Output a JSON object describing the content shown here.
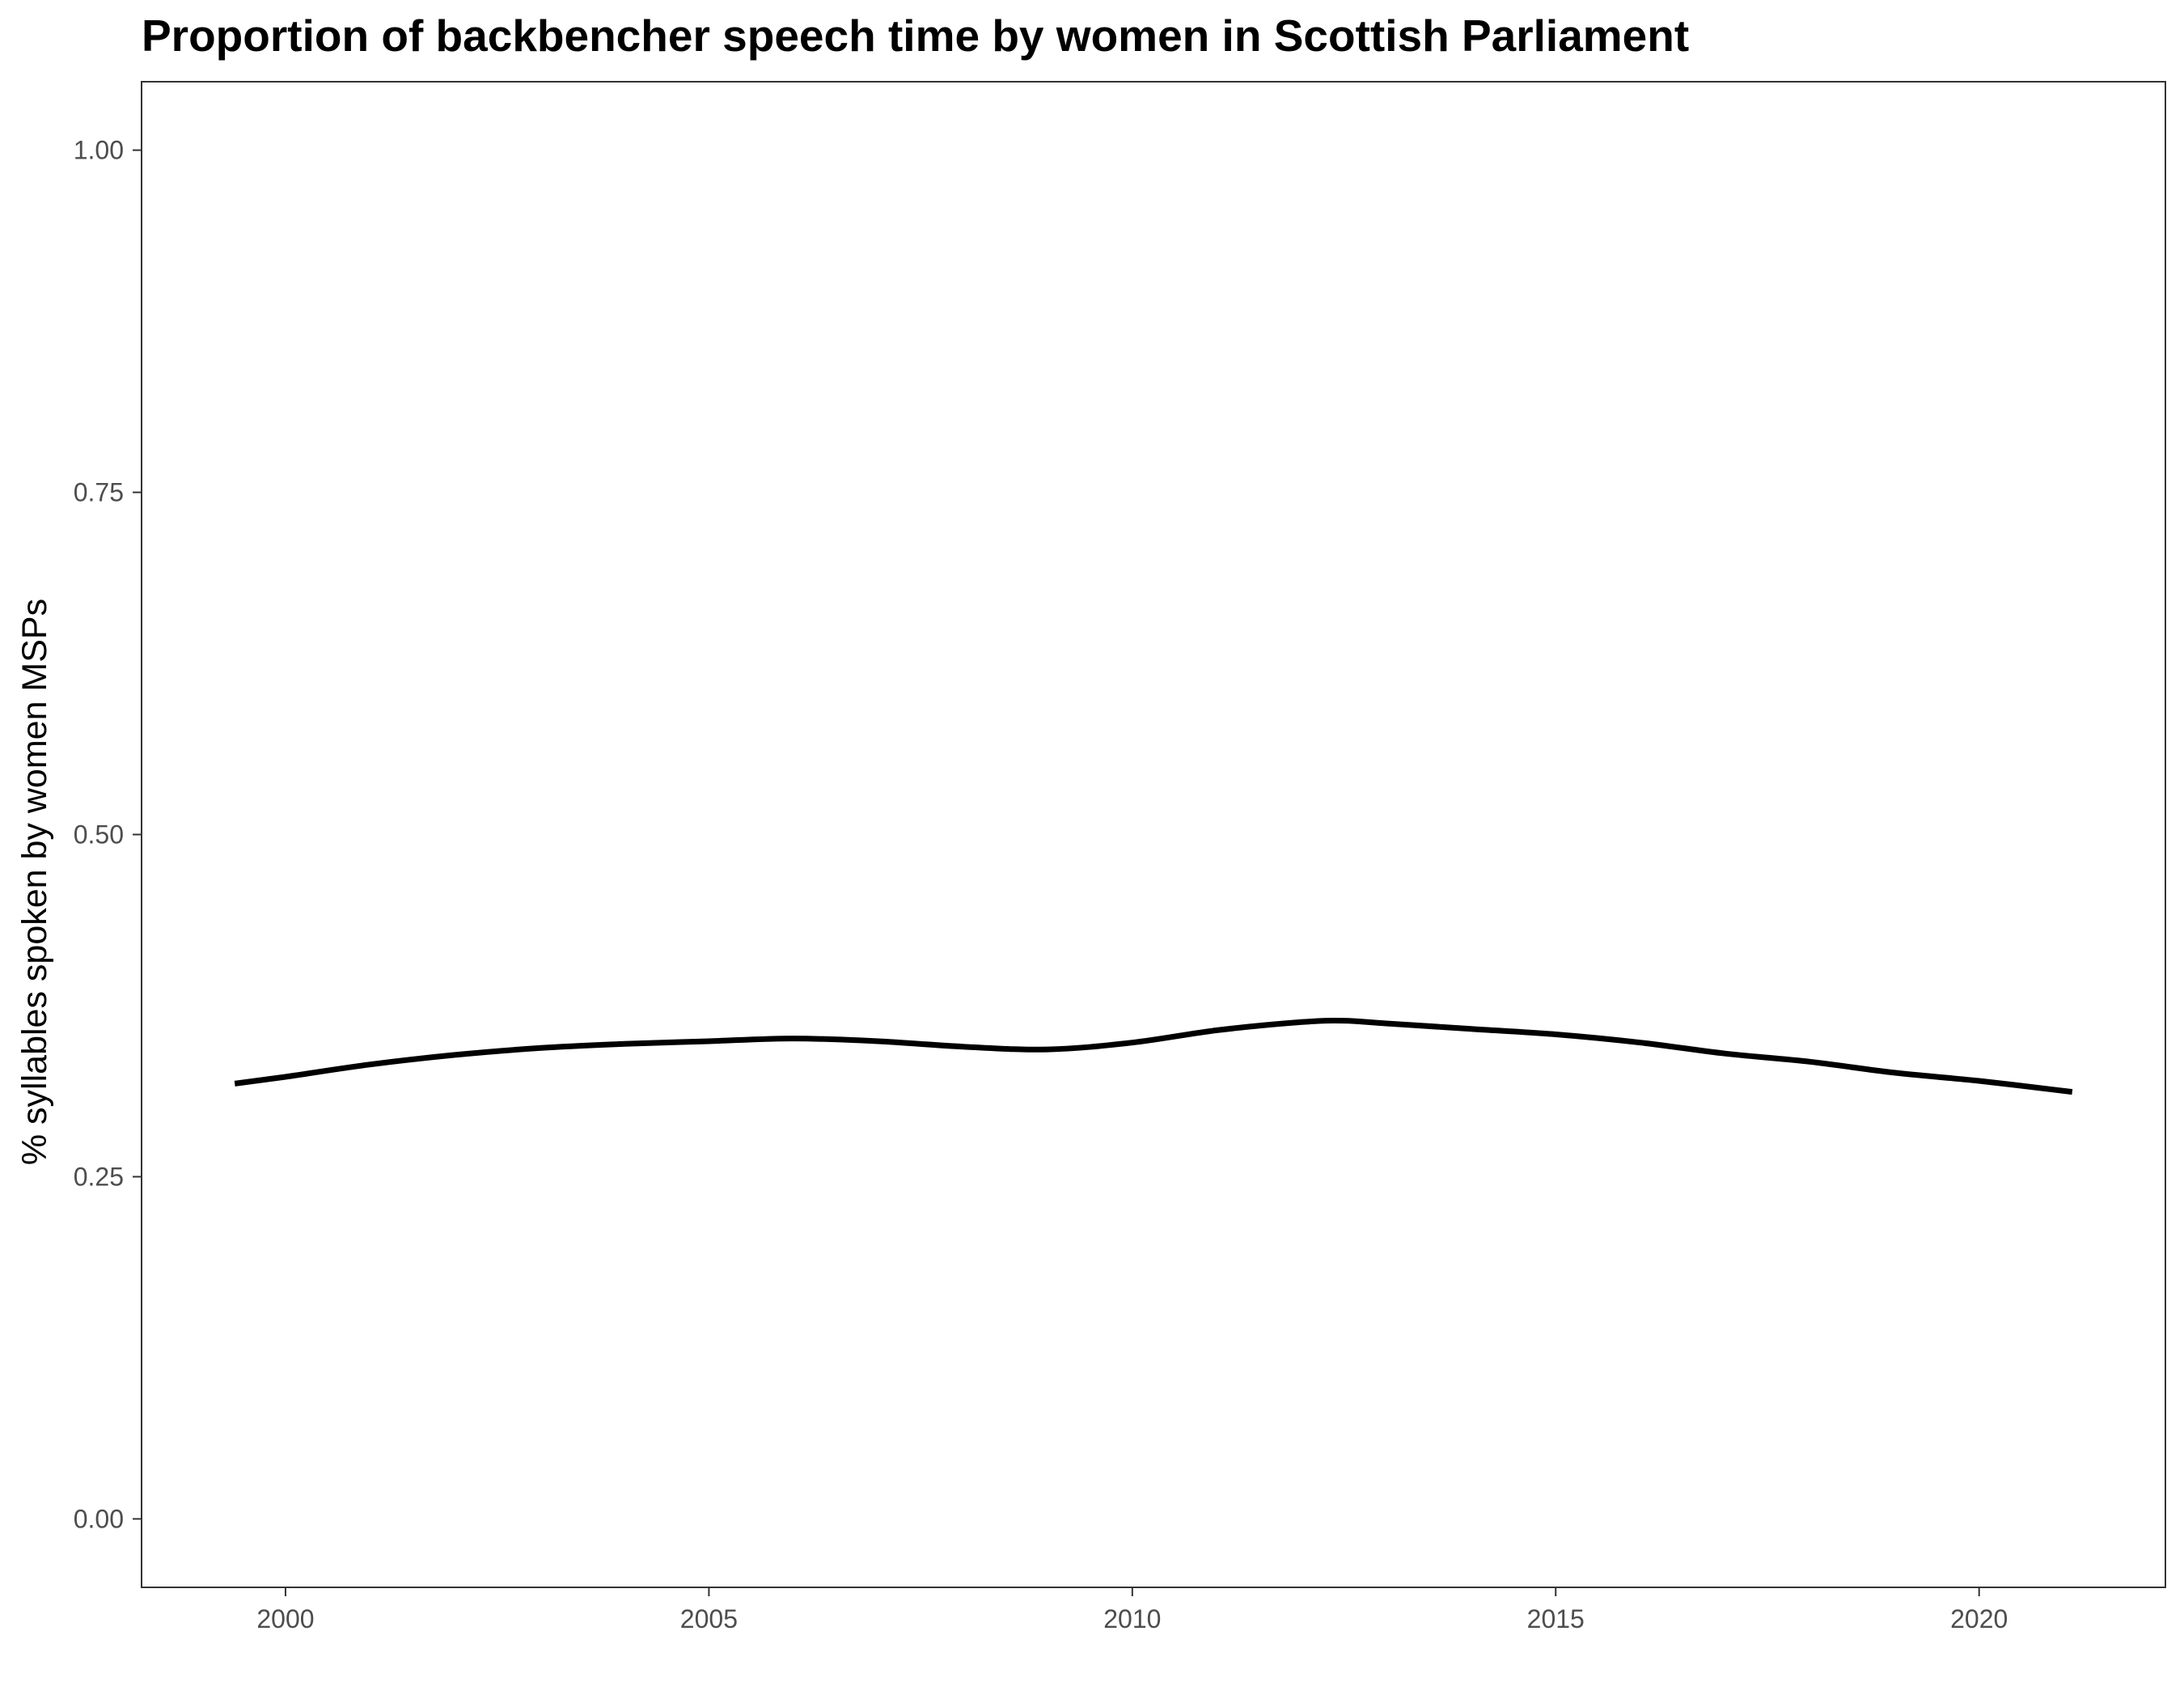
{
  "chart_data": {
    "type": "line",
    "title": "Proportion of backbencher speech time by women in Scottish Parliament",
    "xlabel": "",
    "ylabel": "% syllables spoken by women MSPs",
    "xlim": [
      1998.3,
      2022.2
    ],
    "ylim": [
      -0.05,
      1.05
    ],
    "x_ticks": [
      2000,
      2005,
      2010,
      2015,
      2020
    ],
    "x_tick_labels": [
      "2000",
      "2005",
      "2010",
      "2015",
      "2020"
    ],
    "y_ticks": [
      0,
      0.25,
      0.5,
      0.75,
      1.0
    ],
    "y_tick_labels": [
      "0.00",
      "0.25",
      "0.50",
      "0.75",
      "1.00"
    ],
    "grid": false,
    "line_color": "#000000",
    "series": [
      {
        "x": [
          1999.4,
          2000.0,
          2001.0,
          2002.0,
          2003.0,
          2004.0,
          2005.0,
          2006.0,
          2007.0,
          2008.0,
          2009.0,
          2010.0,
          2011.0,
          2012.0,
          2012.5,
          2013.0,
          2014.0,
          2015.0,
          2016.0,
          2017.0,
          2018.0,
          2019.0,
          2020.0,
          2021.1
        ],
        "y": [
          0.318,
          0.323,
          0.332,
          0.339,
          0.344,
          0.347,
          0.349,
          0.351,
          0.349,
          0.345,
          0.343,
          0.348,
          0.357,
          0.363,
          0.364,
          0.362,
          0.358,
          0.354,
          0.348,
          0.34,
          0.334,
          0.326,
          0.32,
          0.312
        ]
      }
    ]
  }
}
